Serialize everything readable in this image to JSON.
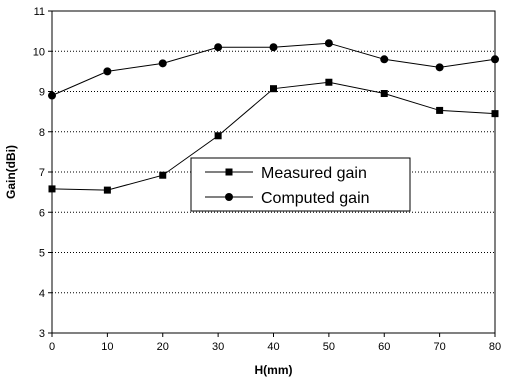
{
  "chart_data": {
    "type": "line",
    "title": "",
    "xlabel": "H(mm)",
    "ylabel": "Gain(dBi)",
    "xlim": [
      0,
      80
    ],
    "ylim": [
      3,
      11
    ],
    "x_ticks": [
      0,
      10,
      20,
      30,
      40,
      50,
      60,
      70,
      80
    ],
    "y_ticks": [
      3,
      4,
      5,
      6,
      7,
      8,
      9,
      10,
      11
    ],
    "grid": "horizontal dotted",
    "legend_position": "center",
    "series": [
      {
        "name": "Measured gain",
        "marker": "square",
        "color": "#000000",
        "x": [
          0,
          10,
          20,
          30,
          40,
          50,
          60,
          70,
          80
        ],
        "y": [
          6.58,
          6.55,
          6.92,
          7.9,
          9.07,
          9.23,
          8.95,
          8.53,
          8.45
        ]
      },
      {
        "name": "Computed gain",
        "marker": "circle",
        "color": "#000000",
        "x": [
          0,
          10,
          20,
          30,
          40,
          50,
          60,
          70,
          80
        ],
        "y": [
          8.9,
          9.5,
          9.7,
          10.1,
          10.1,
          10.2,
          9.8,
          9.6,
          9.8
        ]
      }
    ]
  }
}
